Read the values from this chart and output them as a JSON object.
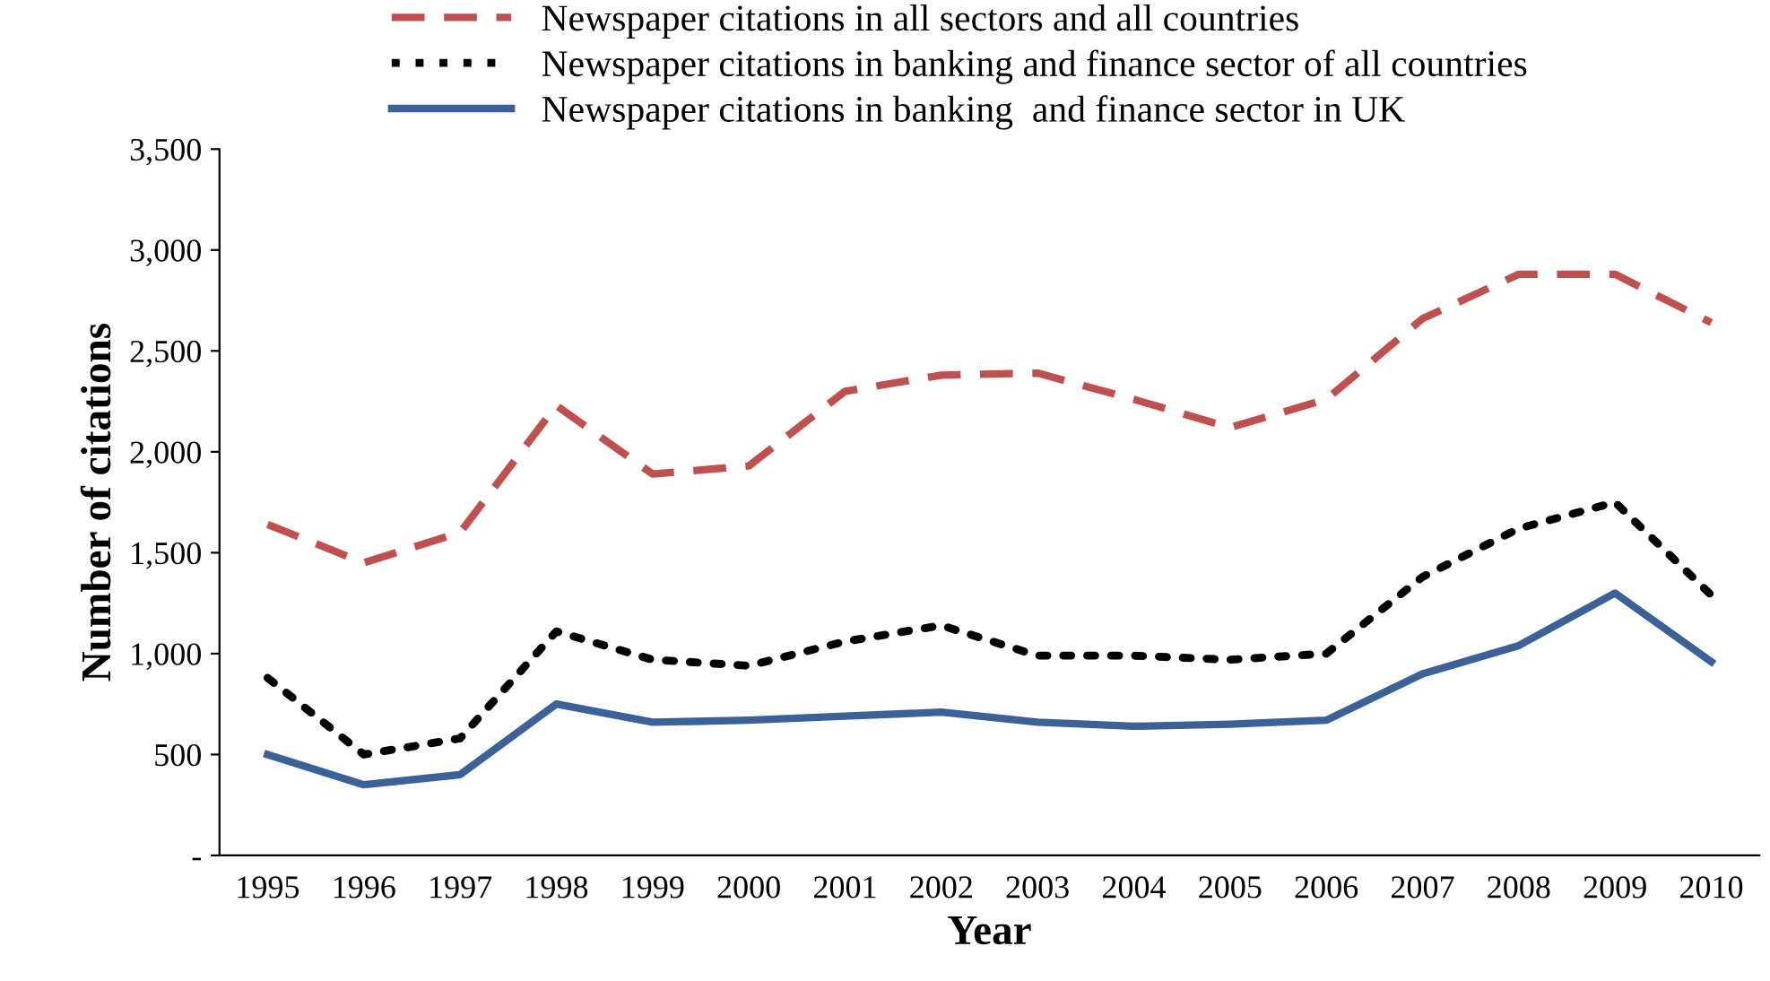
{
  "chart_data": {
    "type": "line",
    "xlabel": "Year",
    "ylabel": "Number of citations",
    "categories": [
      "1995",
      "1996",
      "1997",
      "1998",
      "1999",
      "2000",
      "2001",
      "2002",
      "2003",
      "2004",
      "2005",
      "2006",
      "2007",
      "2008",
      "2009",
      "2010"
    ],
    "series": [
      {
        "name": "Newspaper citations in all sectors and all countries",
        "color": "#c0504d",
        "line_style": "dashed",
        "values": [
          1640,
          1450,
          1600,
          2230,
          1890,
          1930,
          2300,
          2380,
          2390,
          2260,
          2120,
          2260,
          2660,
          2880,
          2880,
          2640
        ]
      },
      {
        "name": "Newspaper citations in banking and finance sector of all countries",
        "color": "#000000",
        "line_style": "dotted",
        "values": [
          880,
          500,
          580,
          1110,
          970,
          940,
          1060,
          1140,
          990,
          990,
          970,
          1000,
          1380,
          1620,
          1750,
          1290
        ]
      },
      {
        "name": "Newspaper citations in banking  and finance sector in UK",
        "color": "#3a6198",
        "line_style": "solid",
        "values": [
          500,
          350,
          400,
          750,
          660,
          670,
          690,
          710,
          660,
          640,
          650,
          670,
          900,
          1040,
          1300,
          960
        ]
      }
    ],
    "ylim": [
      0,
      3500
    ],
    "yticks": [
      {
        "value": 0,
        "label": "-"
      },
      {
        "value": 500,
        "label": "500"
      },
      {
        "value": 1000,
        "label": "1,000"
      },
      {
        "value": 1500,
        "label": "1,500"
      },
      {
        "value": 2000,
        "label": "2,000"
      },
      {
        "value": 2500,
        "label": "2,500"
      },
      {
        "value": 3000,
        "label": "3,000"
      },
      {
        "value": 3500,
        "label": "3,500"
      }
    ],
    "grid": false,
    "legend": "top",
    "marker": "none"
  }
}
